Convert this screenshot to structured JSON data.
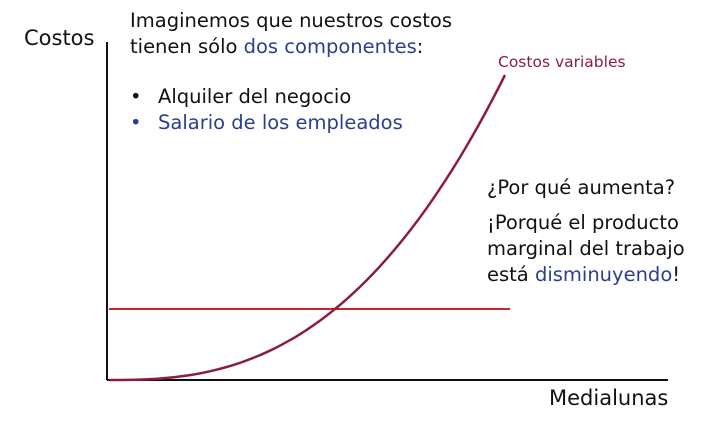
{
  "chart_data": {
    "type": "line",
    "xlabel": "Medialunas",
    "ylabel": "Costos",
    "series": [
      {
        "name": "Costos variables",
        "kind": "curve",
        "color": "#8b1c4a"
      },
      {
        "name": "",
        "kind": "flat",
        "color": "#c0272d"
      }
    ]
  },
  "text": {
    "intro_line1": "Imaginemos que nuestros costos",
    "intro_line2_prefix": "tienen sólo ",
    "intro_line2_highlight": "dos componentes",
    "intro_line2_suffix": ":",
    "bullet_symbol": "•",
    "bullet1": "Alquiler del negocio",
    "bullet2": "Salario de los empleados",
    "question": "¿Por qué aumenta?",
    "answer_line1": "¡Porqué el producto",
    "answer_line2": "marginal del trabajo",
    "answer_line3_prefix": "está ",
    "answer_line3_highlight": "disminuyendo",
    "answer_line3_suffix": "!"
  },
  "colors": {
    "axis": "#111111",
    "highlight": "#2b3f8c"
  }
}
